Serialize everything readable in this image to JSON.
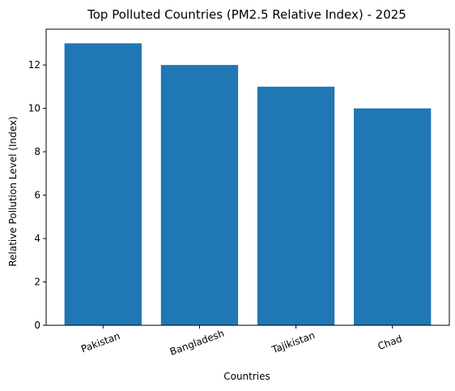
{
  "chart_data": {
    "type": "bar",
    "title": "Top Polluted Countries (PM2.5 Relative Index) - 2025",
    "xlabel": "Countries",
    "ylabel": "Relative Pollution Level (Index)",
    "categories": [
      "Pakistan",
      "Bangladesh",
      "Tajikistan",
      "Chad"
    ],
    "values": [
      13,
      12,
      11,
      10
    ],
    "ylim": [
      0,
      13.65
    ],
    "yticks": [
      0,
      2,
      4,
      6,
      8,
      10,
      12
    ],
    "grid": false,
    "legend": "none",
    "bar_color": "#1f77b4",
    "xtick_rotation_deg": 20
  }
}
